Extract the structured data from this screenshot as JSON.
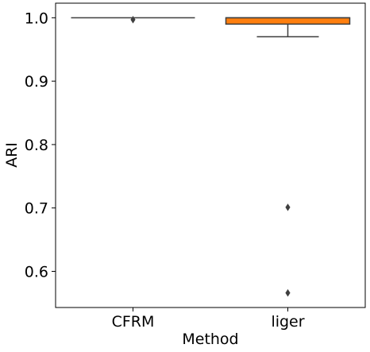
{
  "chart_data": {
    "type": "box",
    "title": "",
    "xlabel": "Method",
    "ylabel": "ARI",
    "ylim": [
      0.543,
      1.023
    ],
    "yticks": [
      0.6,
      0.7,
      0.8,
      0.9,
      1.0
    ],
    "ytick_labels": [
      "0.6",
      "0.7",
      "0.8",
      "0.9",
      "1.0"
    ],
    "categories": [
      "CFRM",
      "liger"
    ],
    "grid": false,
    "legend": "none",
    "boxes": [
      {
        "name": "CFRM",
        "color": "#1f77b4",
        "whisker_low": 1.0,
        "q1": 1.0,
        "median": 1.0,
        "q3": 1.0,
        "whisker_high": 1.0,
        "outliers": [
          0.997
        ]
      },
      {
        "name": "liger",
        "color": "#ff7f0e",
        "whisker_low": 0.97,
        "q1": 0.99,
        "median": 1.0,
        "q3": 1.0,
        "whisker_high": 1.0,
        "outliers": [
          0.701,
          0.566
        ]
      }
    ]
  }
}
